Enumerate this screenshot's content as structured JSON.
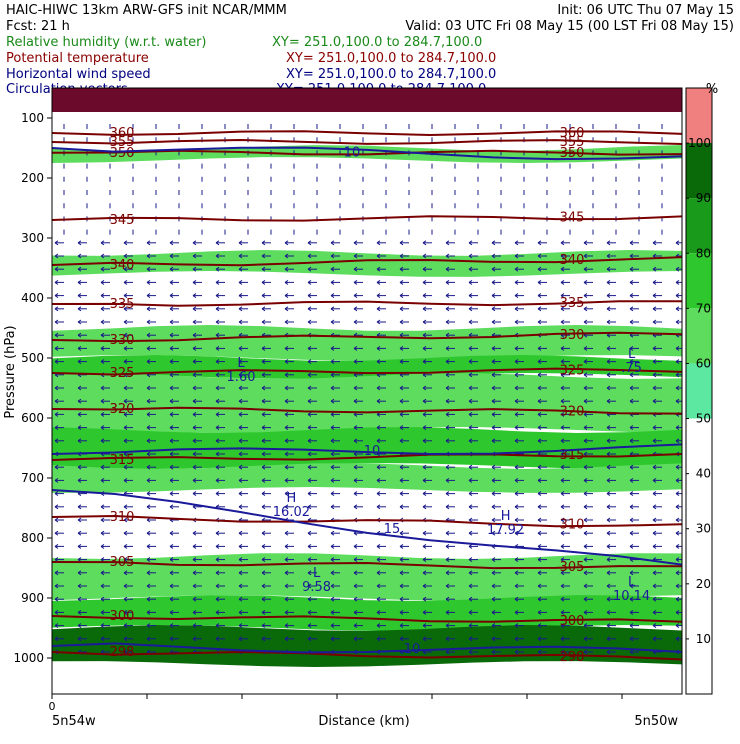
{
  "header": {
    "left_line1": "HAIC-HIWC 13km ARW-GFS init    NCAR/MMM",
    "left_line2": "Fcst:   21 h",
    "init": "Init: 06 UTC Thu 07 May 15",
    "valid": "Valid: 03 UTC Fri 08 May 15 (00 LST Fri 08 May 15)",
    "fields": [
      {
        "name": "Relative humidity (w.r.t. water)",
        "xy": "XY= 251.0,100.0 to 284.7,100.0",
        "color": "#1a8a1a"
      },
      {
        "name": "Potential temperature",
        "xy": "XY= 251.0,100.0 to 284.7,100.0",
        "color": "#8b0000"
      },
      {
        "name": "Horizontal wind speed",
        "xy": "XY= 251.0,100.0 to 284.7,100.0",
        "color": "#000080"
      },
      {
        "name": "Circulation vectors",
        "xy": "XY= 251.0,100.0 to 284.7,100.0",
        "color": "#000080"
      }
    ]
  },
  "chart_data": {
    "type": "heatmap",
    "ylabel": "Pressure (hPa)",
    "xlabel": "Distance (km)",
    "x_tick_label": "0",
    "x_start_label": "5n54w",
    "x_end_label": "5n50w",
    "y_ticks": [
      100,
      200,
      300,
      400,
      500,
      600,
      700,
      800,
      900,
      1000
    ],
    "colorbar": {
      "unit": "%",
      "levels": [
        10,
        20,
        30,
        40,
        50,
        60,
        70,
        80,
        90,
        100
      ],
      "colors": [
        "#ffffff",
        "#ffffff",
        "#ffffff",
        "#ffffff",
        "#ffffff",
        "#5ce8a0",
        "#5edc5e",
        "#2ec82e",
        "#1a9a1a",
        "#0a6a0a",
        "#f08080"
      ]
    },
    "rh_bands": [
      {
        "p_top": 150,
        "p_bottom": 170,
        "color": "#5edc5e"
      },
      {
        "p_top": 325,
        "p_bottom": 360,
        "color": "#5edc5e"
      },
      {
        "p_top": 450,
        "p_bottom": 500,
        "color": "#5edc5e"
      },
      {
        "p_top": 500,
        "p_bottom": 530,
        "color": "#2ec82e"
      },
      {
        "p_top": 530,
        "p_bottom": 620,
        "color": "#5edc5e"
      },
      {
        "p_top": 620,
        "p_bottom": 680,
        "color": "#2ec82e"
      },
      {
        "p_top": 680,
        "p_bottom": 720,
        "color": "#5edc5e"
      },
      {
        "p_top": 830,
        "p_bottom": 900,
        "color": "#5edc5e"
      },
      {
        "p_top": 900,
        "p_bottom": 950,
        "color": "#2ec82e"
      },
      {
        "p_top": 950,
        "p_bottom": 1010,
        "color": "#0a6a0a"
      }
    ],
    "potential_temperature": [
      {
        "label": "360",
        "p_left": 125,
        "p_right": 125
      },
      {
        "label": "355",
        "p_left": 140,
        "p_right": 140
      },
      {
        "label": "350",
        "p_left": 158,
        "p_right": 158
      },
      {
        "label": "345",
        "p_left": 270,
        "p_right": 265
      },
      {
        "label": "340",
        "p_left": 345,
        "p_right": 335
      },
      {
        "label": "335",
        "p_left": 410,
        "p_right": 408
      },
      {
        "label": "330",
        "p_left": 470,
        "p_right": 460
      },
      {
        "label": "325",
        "p_left": 525,
        "p_right": 520
      },
      {
        "label": "320",
        "p_left": 585,
        "p_right": 590
      },
      {
        "label": "315",
        "p_left": 670,
        "p_right": 660
      },
      {
        "label": "310",
        "p_left": 765,
        "p_right": 780
      },
      {
        "label": "305",
        "p_left": 840,
        "p_right": 850
      },
      {
        "label": "300",
        "p_left": 930,
        "p_right": 940
      },
      {
        "label": "298",
        "p_left": 990,
        "p_right": 1000
      }
    ],
    "wind_speed_contours": [
      {
        "label": "10",
        "p_left": 150,
        "p_right": 165
      },
      {
        "label": "10",
        "p_left": 660,
        "p_right": 650
      },
      {
        "label": "15",
        "p_left": 720,
        "p_right": 850
      },
      {
        "label": "10",
        "p_left": 980,
        "p_right": 990
      }
    ],
    "extrema": [
      {
        "type": "L",
        "value": "1.60",
        "x_frac": 0.3,
        "p": 515
      },
      {
        "type": "L",
        "value": ".75",
        "x_frac": 0.92,
        "p": 500
      },
      {
        "type": "H",
        "value": "16.02",
        "x_frac": 0.38,
        "p": 740
      },
      {
        "type": "H",
        "value": "17.92",
        "x_frac": 0.72,
        "p": 770
      },
      {
        "type": "L",
        "value": "9.58",
        "x_frac": 0.42,
        "p": 865
      },
      {
        "type": "L",
        "value": "10.14",
        "x_frac": 0.92,
        "p": 880
      }
    ]
  }
}
